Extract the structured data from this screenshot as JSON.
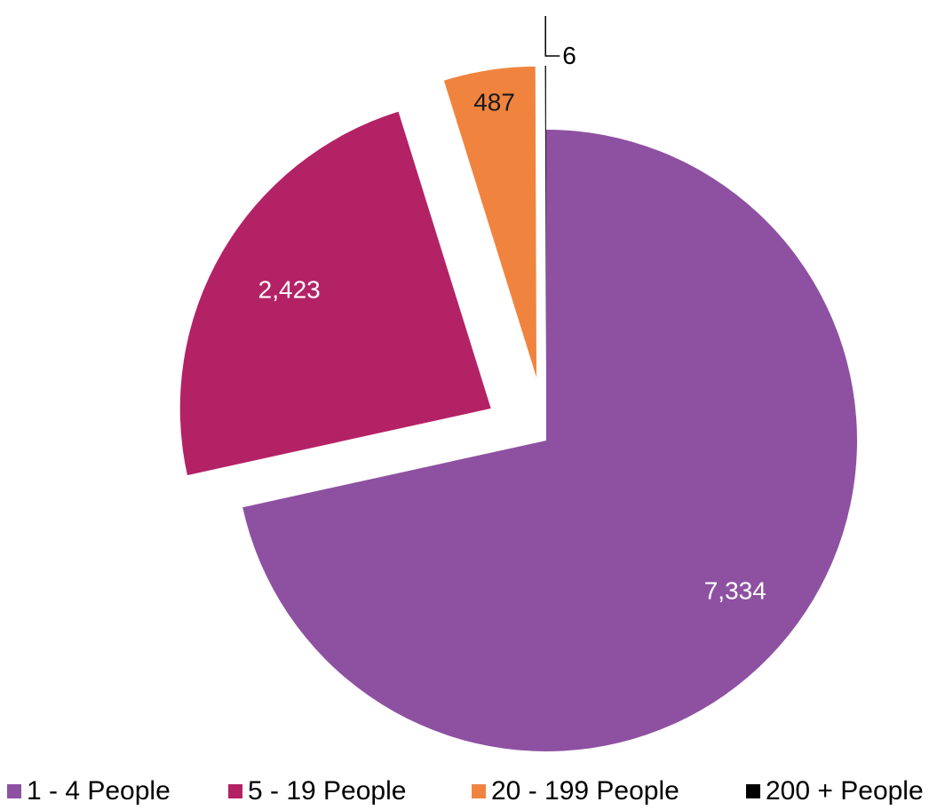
{
  "chart_data": {
    "type": "pie",
    "title": "",
    "slices": [
      {
        "label": "1 - 4 People",
        "value": 7334,
        "value_label": "7,334",
        "color": "#8E51A2",
        "exploded": false
      },
      {
        "label": "5 - 19 People",
        "value": 2423,
        "value_label": "2,423",
        "color": "#B42266",
        "exploded": true
      },
      {
        "label": "20 - 199 People",
        "value": 487,
        "value_label": "487",
        "color": "#F0843F",
        "exploded": true
      },
      {
        "label": "200 + People",
        "value": 6,
        "value_label": "6",
        "color": "#000000",
        "exploded": true
      }
    ],
    "legend_position": "bottom"
  },
  "legend": {
    "items": [
      {
        "label": "1 - 4 People",
        "color": "#8E51A2"
      },
      {
        "label": "5 - 19 People",
        "color": "#B42266"
      },
      {
        "label": "20 - 199 People",
        "color": "#F0843F"
      },
      {
        "label": "200 + People",
        "color": "#000000"
      }
    ]
  }
}
